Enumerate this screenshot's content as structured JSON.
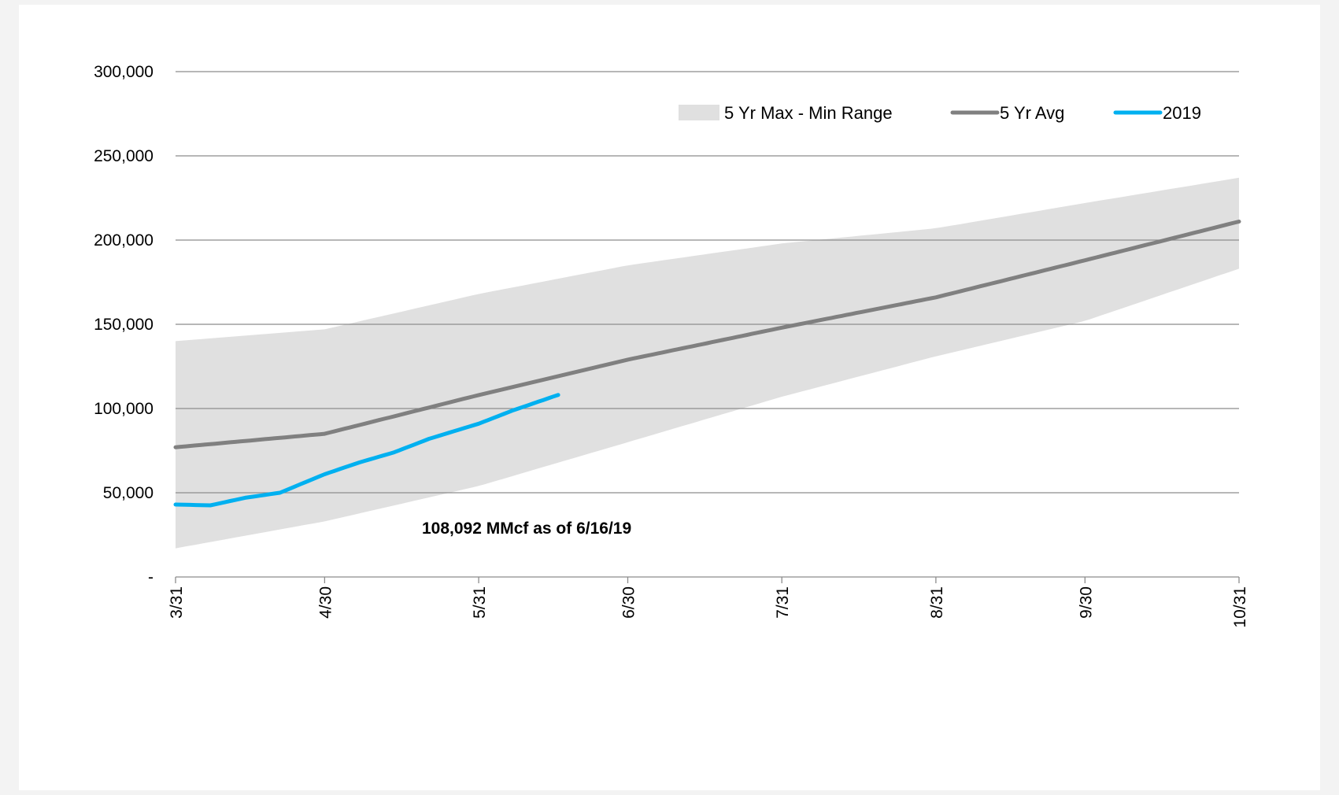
{
  "chart_data": {
    "type": "line",
    "title": "",
    "xlabel": "",
    "ylabel": "",
    "x_tick_labels": [
      "3/31",
      "4/30",
      "5/31",
      "6/30",
      "7/31",
      "8/31",
      "9/30",
      "10/31"
    ],
    "y_tick_labels": [
      "-",
      "50,000",
      "100,000",
      "150,000",
      "200,000",
      "250,000",
      "300,000"
    ],
    "ylim": [
      0,
      300000
    ],
    "xlim": [
      "3/31",
      "10/31"
    ],
    "grid": "horizontal",
    "legend_position": "top-right",
    "annotation": "108,092 MMcf  as of 6/16/19",
    "x_dates": [
      "3/31",
      "4/30",
      "5/31",
      "6/30",
      "7/31",
      "8/31",
      "9/30",
      "10/31"
    ],
    "series": [
      {
        "name": "5 Yr Max - Min Range",
        "kind": "band",
        "color": "#e0e0e0",
        "upper": [
          140000,
          147000,
          168000,
          185000,
          198000,
          207000,
          222000,
          237000
        ],
        "lower": [
          17000,
          33000,
          54000,
          80000,
          107000,
          131000,
          152000,
          183000
        ]
      },
      {
        "name": "5 Yr Avg",
        "kind": "line",
        "color": "#808080",
        "values": [
          77000,
          85000,
          108000,
          129000,
          148000,
          166000,
          188000,
          211000
        ]
      },
      {
        "name": "2019",
        "kind": "line",
        "color": "#00b0f0",
        "dates": [
          "3/31",
          "4/7",
          "4/14",
          "4/21",
          "4/30",
          "5/7",
          "5/14",
          "5/21",
          "5/31",
          "6/7",
          "6/16"
        ],
        "values": [
          43000,
          42500,
          47000,
          50000,
          61000,
          68000,
          74000,
          82000,
          91000,
          99000,
          108092
        ]
      }
    ]
  }
}
